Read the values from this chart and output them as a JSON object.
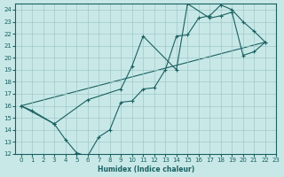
{
  "xlabel": "Humidex (Indice chaleur)",
  "background_color": "#c8e8e8",
  "grid_color": "#a0c8c8",
  "line_color": "#1a6060",
  "xlim": [
    -0.5,
    23
  ],
  "ylim": [
    12,
    24.5
  ],
  "xticks": [
    0,
    1,
    2,
    3,
    4,
    5,
    6,
    7,
    8,
    9,
    10,
    11,
    12,
    13,
    14,
    15,
    16,
    17,
    18,
    19,
    20,
    21,
    22,
    23
  ],
  "yticks": [
    12,
    13,
    14,
    15,
    16,
    17,
    18,
    19,
    20,
    21,
    22,
    23,
    24
  ],
  "series1_x": [
    0,
    1,
    3,
    4,
    5,
    6,
    7,
    8,
    9,
    10,
    11,
    12,
    13,
    14,
    15,
    16,
    17,
    18,
    19,
    20,
    21,
    22
  ],
  "series1_y": [
    16.0,
    15.6,
    14.5,
    13.2,
    12.1,
    11.8,
    13.4,
    14.0,
    16.3,
    16.4,
    17.4,
    17.5,
    19.0,
    21.8,
    21.9,
    23.3,
    23.5,
    24.4,
    24.0,
    23.0,
    22.2,
    21.3
  ],
  "series2_x": [
    0,
    3,
    6,
    9,
    10,
    11,
    14,
    15,
    17,
    18,
    19,
    20,
    21,
    22
  ],
  "series2_y": [
    16.0,
    14.5,
    16.5,
    17.4,
    19.3,
    21.8,
    19.0,
    24.5,
    23.3,
    23.5,
    23.8,
    20.2,
    20.5,
    21.3
  ],
  "series3_x": [
    0,
    22
  ],
  "series3_y": [
    16.0,
    21.3
  ]
}
